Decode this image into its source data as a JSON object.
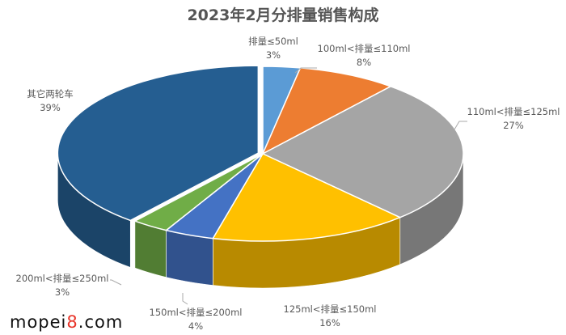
{
  "chart_data": {
    "type": "pie",
    "title": "2023年2月分排量销售构成",
    "three_d": true,
    "start_angle": "12 o'clock, clockwise",
    "slices": [
      {
        "label": "排量≤50ml",
        "value": 3,
        "display": "3%",
        "color": "#5b9bd5"
      },
      {
        "label": "100ml<排量≤110ml",
        "value": 8,
        "display": "8%",
        "color": "#ed7d31"
      },
      {
        "label": "110ml<排量≤125ml",
        "value": 27,
        "display": "27%",
        "color": "#a5a5a5"
      },
      {
        "label": "125ml<排量≤150ml",
        "value": 16,
        "display": "16%",
        "color": "#ffc000"
      },
      {
        "label": "150ml<排量≤200ml",
        "value": 4,
        "display": "4%",
        "color": "#4472c4"
      },
      {
        "label": "200ml<排量≤250ml",
        "value": 3,
        "display": "3%",
        "color": "#70ad47"
      },
      {
        "label": "其它两轮车",
        "value": 39,
        "display": "39%",
        "color": "#255e91"
      }
    ]
  },
  "watermark": {
    "pre": "mopei",
    "accent": "8",
    "post": ".com"
  }
}
